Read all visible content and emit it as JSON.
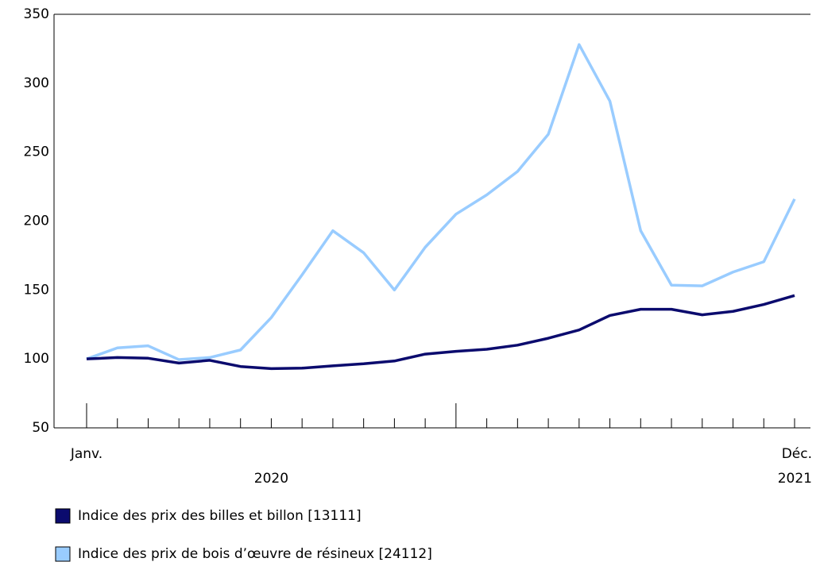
{
  "chart_data": {
    "type": "line",
    "categories": [
      "Janv.",
      null,
      null,
      null,
      null,
      null,
      null,
      null,
      null,
      null,
      null,
      null,
      null,
      null,
      null,
      null,
      null,
      null,
      null,
      null,
      null,
      null,
      null,
      "Déc."
    ],
    "year_labels": [
      "2020",
      "2021"
    ],
    "series": [
      {
        "name": "Indice des prix des billes et billon [13111]",
        "color": "#0b0b6e",
        "values": [
          100,
          101,
          100.5,
          97,
          99,
          94.5,
          93,
          93.3,
          95,
          96.5,
          98.5,
          103.5,
          105.5,
          107,
          110,
          115,
          121,
          131.5,
          136,
          136,
          132,
          134.5,
          139.5,
          146
        ]
      },
      {
        "name": "Indice des prix de bois d’œuvre de résineux [24112]",
        "color": "#99ccff",
        "values": [
          100,
          108,
          109.5,
          99.5,
          101,
          106.5,
          130,
          161,
          193,
          177,
          150,
          181,
          205,
          219,
          236,
          263,
          328,
          287,
          193,
          153.5,
          153,
          163,
          170.5,
          216
        ]
      }
    ],
    "ylim": [
      50,
      350
    ],
    "yticks": [
      50,
      100,
      150,
      200,
      250,
      300,
      350
    ],
    "grid": false
  }
}
